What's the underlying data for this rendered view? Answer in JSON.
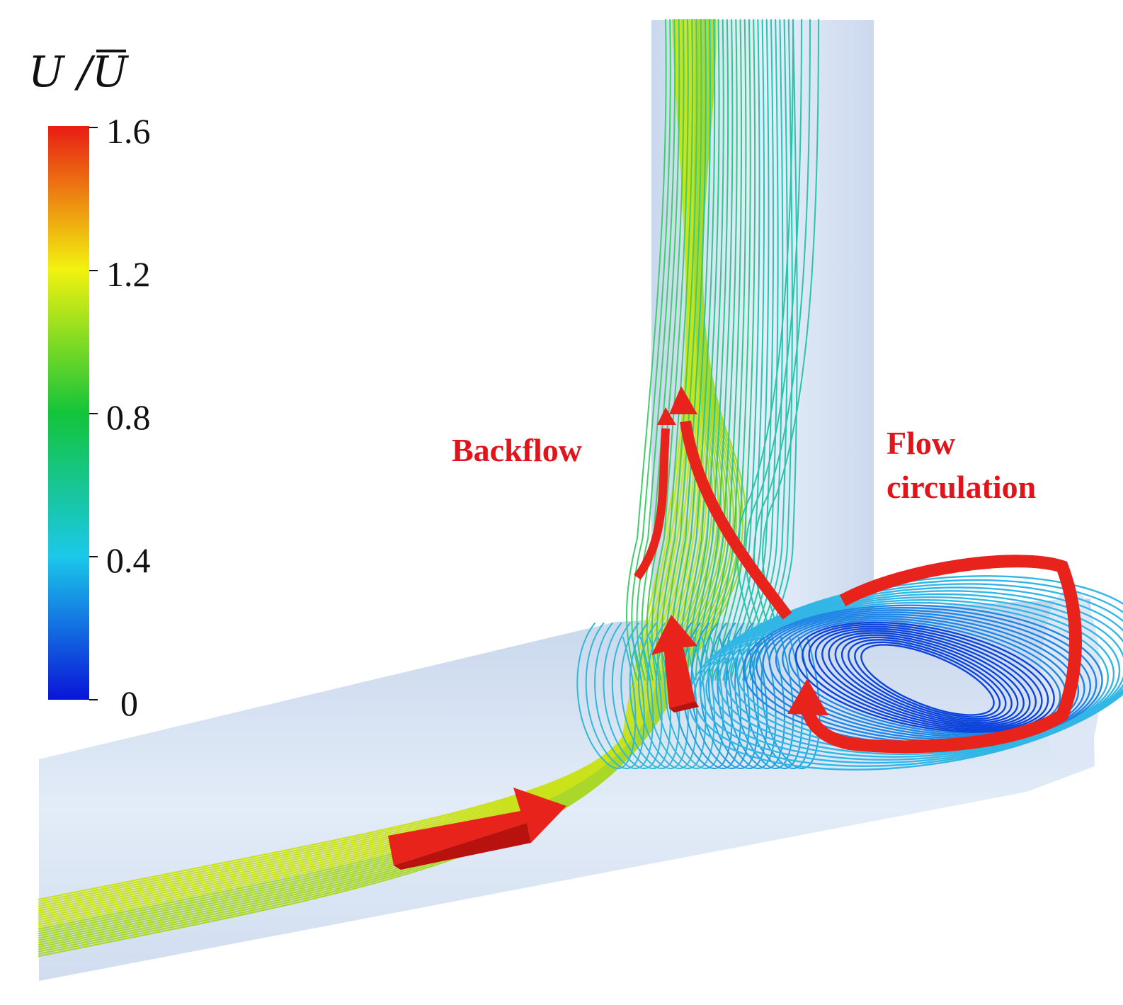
{
  "legend": {
    "title_u": "U",
    "title_slash": "/",
    "title_ubar": "U",
    "ticks": [
      {
        "value": 1.6,
        "label": "1.6"
      },
      {
        "value": 1.2,
        "label": "1.2"
      },
      {
        "value": 0.8,
        "label": "0.8"
      },
      {
        "value": 0.4,
        "label": "0.4"
      },
      {
        "value": 0,
        "label": "0"
      }
    ],
    "range": [
      0,
      1.6
    ],
    "colors": [
      "#0a14d8",
      "#1bc8ea",
      "#13c43a",
      "#f2f20e",
      "#e81c14"
    ]
  },
  "annotations": {
    "backflow": "Backflow",
    "flow_circulation_line1": "Flow",
    "flow_circulation_line2": "circulation"
  },
  "colors": {
    "pipe": "#d9e6f5",
    "arrow": "#e8231c"
  }
}
